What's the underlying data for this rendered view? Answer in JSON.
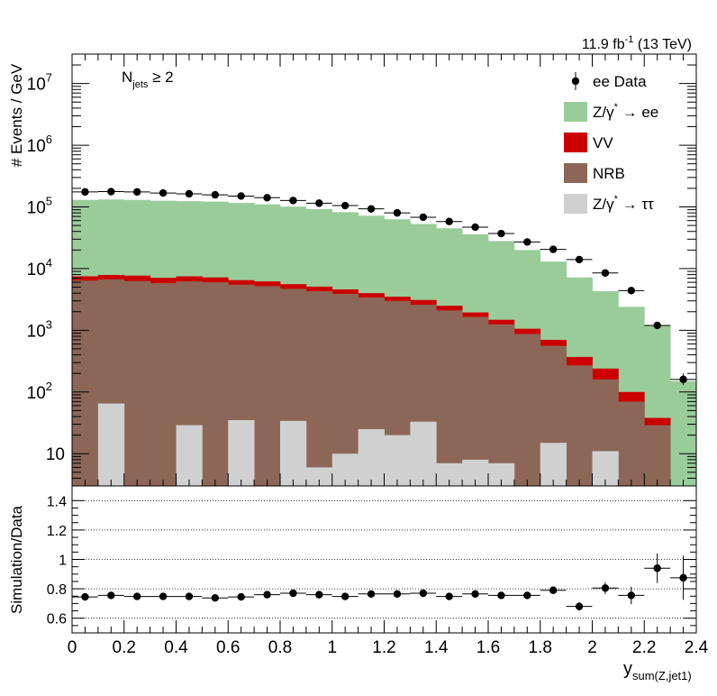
{
  "colors": {
    "zee": "#99cc99",
    "vv": "#cc0000",
    "nrb": "#8c6656",
    "ztautau": "#d0d0d0",
    "data": "#000000"
  },
  "chart_data": [
    {
      "type": "bar",
      "stacked": true,
      "y_scale": "log",
      "ylim": [
        3,
        30000000
      ],
      "xlim": [
        0,
        2.4
      ],
      "bin_width": 0.1,
      "ylabel": "# Events / GeV",
      "lumi_label": "11.9 fb",
      "lumi_exp": "-1",
      "lumi_suffix": " (13 TeV)",
      "annotation": {
        "base": "N",
        "sub": "jets",
        "rest": " ≥ 2"
      },
      "y_ticks": [
        {
          "value": 10000000,
          "base": "10",
          "exp": "7"
        },
        {
          "value": 1000000,
          "base": "10",
          "exp": "6"
        },
        {
          "value": 100000,
          "base": "10",
          "exp": "5"
        },
        {
          "value": 10000,
          "base": "10",
          "exp": "4"
        },
        {
          "value": 1000,
          "base": "10",
          "exp": "3"
        },
        {
          "value": 100,
          "base": "10",
          "exp": "2"
        },
        {
          "value": 10,
          "base": "10",
          "exp": ""
        }
      ],
      "legend": {
        "placement": "top-right",
        "entries": [
          {
            "kind": "marker",
            "label": "ee Data"
          },
          {
            "kind": "box",
            "color_key": "zee",
            "label": "Z/γ",
            "sup": "*",
            "tail": " → ee"
          },
          {
            "kind": "box",
            "color_key": "vv",
            "label": "VV"
          },
          {
            "kind": "box",
            "color_key": "nrb",
            "label": "NRB"
          },
          {
            "kind": "box",
            "color_key": "ztautau",
            "label": "Z/γ",
            "sup": "*",
            "tail": " → ττ"
          }
        ]
      },
      "bins": [
        0.0,
        0.1,
        0.2,
        0.3,
        0.4,
        0.5,
        0.6,
        0.7,
        0.8,
        0.9,
        1.0,
        1.1,
        1.2,
        1.3,
        1.4,
        1.5,
        1.6,
        1.7,
        1.8,
        1.9,
        2.0,
        2.1,
        2.2,
        2.3,
        2.4
      ],
      "series": [
        {
          "name": "Z/γ* → ττ",
          "color_key": "ztautau",
          "stack_total": [
            3,
            65,
            3,
            3,
            29,
            3,
            35,
            3,
            34,
            6,
            10,
            25,
            20,
            33,
            7,
            8,
            7,
            3,
            15,
            3,
            11,
            3,
            3,
            3
          ]
        },
        {
          "name": "NRB",
          "color_key": "nrb",
          "stack_total": [
            6400,
            6700,
            6300,
            5800,
            6200,
            6000,
            5500,
            5200,
            4700,
            4300,
            3900,
            3400,
            3000,
            2600,
            2100,
            1650,
            1250,
            870,
            560,
            270,
            160,
            70,
            29,
            3
          ]
        },
        {
          "name": "VV",
          "color_key": "vv",
          "stack_total": [
            7500,
            7900,
            7700,
            7100,
            7500,
            7200,
            6500,
            6200,
            5600,
            5100,
            4600,
            4000,
            3500,
            3100,
            2500,
            1950,
            1480,
            1060,
            700,
            370,
            240,
            100,
            38,
            3
          ]
        },
        {
          "name": "Z/γ* → ee",
          "color_key": "zee",
          "stack_total": [
            130000,
            132000,
            130000,
            126000,
            124000,
            122000,
            116000,
            110000,
            101000,
            92000,
            82000,
            72000,
            63000,
            53000,
            45000,
            36000,
            28000,
            20000,
            13000,
            7200,
            4300,
            2400,
            1200,
            150
          ]
        }
      ],
      "data_points": {
        "name": "ee Data",
        "x": [
          0.05,
          0.15,
          0.25,
          0.35,
          0.45,
          0.55,
          0.65,
          0.75,
          0.85,
          0.95,
          1.05,
          1.15,
          1.25,
          1.35,
          1.45,
          1.55,
          1.65,
          1.75,
          1.85,
          1.95,
          2.05,
          2.15,
          2.25,
          2.35
        ],
        "y": [
          175000,
          177000,
          175000,
          168000,
          163000,
          157000,
          150000,
          141000,
          127000,
          115000,
          105000,
          93000,
          80000,
          68000,
          58000,
          47000,
          37000,
          27000,
          20500,
          14000,
          8500,
          4400,
          1200,
          160
        ],
        "y_err_low": [
          0,
          0,
          0,
          0,
          0,
          0,
          0,
          0,
          0,
          0,
          0,
          0,
          0,
          0,
          0,
          0,
          0,
          0,
          0,
          0,
          0,
          0,
          0,
          30
        ],
        "y_err_high": [
          0,
          0,
          0,
          0,
          0,
          0,
          0,
          0,
          0,
          0,
          0,
          0,
          0,
          0,
          0,
          0,
          0,
          0,
          0,
          0,
          0,
          0,
          0,
          40
        ]
      }
    },
    {
      "type": "scatter",
      "ylabel": "Simulation/Data",
      "xlabel": "y",
      "xlabel_sub": "sum(Z,jet1)",
      "xlim": [
        0,
        2.4
      ],
      "ylim": [
        0.5,
        1.5
      ],
      "grid": "horizontal-dotted",
      "y_ticks": [
        "0.6",
        "0.8",
        "1",
        "1.2",
        "1.4"
      ],
      "y_tick_values": [
        0.6,
        0.8,
        1.0,
        1.2,
        1.4
      ],
      "x_ticks": [
        "0",
        "0.2",
        "0.4",
        "0.6",
        "0.8",
        "1",
        "1.2",
        "1.4",
        "1.6",
        "1.8",
        "2",
        "2.2",
        "2.4"
      ],
      "x_tick_values": [
        0,
        0.2,
        0.4,
        0.6,
        0.8,
        1.0,
        1.2,
        1.4,
        1.6,
        1.8,
        2.0,
        2.2,
        2.4
      ],
      "x": [
        0.05,
        0.15,
        0.25,
        0.35,
        0.45,
        0.55,
        0.65,
        0.75,
        0.85,
        0.95,
        1.05,
        1.15,
        1.25,
        1.35,
        1.45,
        1.55,
        1.65,
        1.75,
        1.85,
        1.95,
        2.05,
        2.15,
        2.25,
        2.35
      ],
      "y": [
        0.745,
        0.755,
        0.748,
        0.748,
        0.748,
        0.738,
        0.745,
        0.76,
        0.77,
        0.76,
        0.748,
        0.765,
        0.765,
        0.77,
        0.748,
        0.765,
        0.755,
        0.755,
        0.79,
        0.68,
        0.805,
        0.755,
        0.94,
        0.875
      ],
      "y_err": [
        0.01,
        0.01,
        0.01,
        0.01,
        0.01,
        0.01,
        0.01,
        0.01,
        0.01,
        0.01,
        0.01,
        0.01,
        0.01,
        0.012,
        0.012,
        0.013,
        0.014,
        0.016,
        0.02,
        0.03,
        0.04,
        0.06,
        0.1,
        0.15
      ]
    }
  ]
}
